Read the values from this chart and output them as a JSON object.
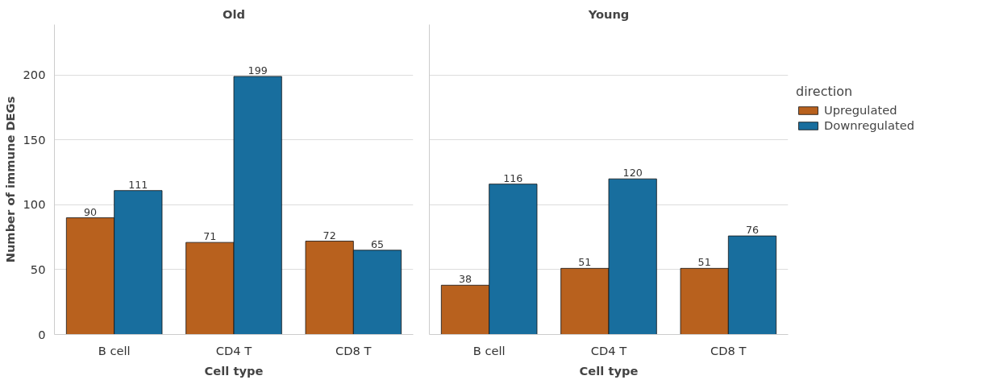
{
  "chart_data": [
    {
      "type": "bar",
      "title": "Old",
      "xlabel": "Cell type",
      "ylabel": "Number of immune DEGs",
      "categories": [
        "B cell",
        "CD4 T",
        "CD8 T"
      ],
      "series": [
        {
          "color": "#b8611e",
          "values": [
            90,
            71,
            72
          ]
        },
        {
          "color": "#186e9e",
          "values": [
            111,
            199,
            65
          ]
        }
      ],
      "ylim": [
        0,
        239
      ],
      "yticks": [
        0,
        50,
        100,
        150,
        200
      ],
      "grid": "y",
      "data_labels": true
    },
    {
      "type": "bar",
      "title": "Young",
      "xlabel": "Cell type",
      "categories": [
        "B cell",
        "CD4 T",
        "CD8 T"
      ],
      "series": [
        {
          "name": "Upregulated",
          "color": "#b8611e",
          "values": [
            38,
            51,
            51
          ]
        },
        {
          "name": "Downregulated",
          "color": "#186e9e",
          "values": [
            116,
            120,
            76
          ]
        }
      ],
      "ylim": [
        0,
        239
      ],
      "yticks": [
        0,
        50,
        100,
        150,
        200
      ],
      "grid": "y",
      "data_labels": true,
      "tick_labels": "x",
      "legend": "right",
      "legend_title": "direction"
    }
  ]
}
